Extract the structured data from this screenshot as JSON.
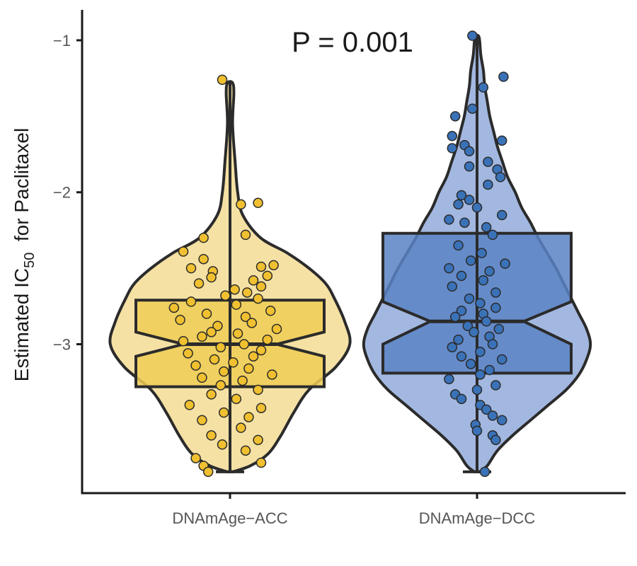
{
  "chart_data": {
    "type": "violin",
    "annotation": "P = 0.001",
    "ylabel": {
      "prefix": "Estimated IC",
      "subscript": "50",
      "suffix": "  for Paclitaxel"
    },
    "xlabel": "",
    "ylim": [
      -3.98,
      -0.8
    ],
    "yticks": [
      -1,
      -2,
      -3
    ],
    "ytick_labels": [
      "−1",
      "−2",
      "−3"
    ],
    "grid": false,
    "legend": "none",
    "series": [
      {
        "category": "DNAmAge−ACC",
        "fill_color": "#f5e1a4",
        "box_color": "#eecc55",
        "point_color": "#f0c030",
        "box": {
          "q1": -3.28,
          "median": -3.0,
          "q3": -2.71,
          "notch_low": -3.08,
          "notch_high": -2.92,
          "whisker_low": -3.84,
          "whisker_high": -1.28
        },
        "density": [
          [
            -3.84,
            0.02
          ],
          [
            -3.8,
            0.16
          ],
          [
            -3.72,
            0.3
          ],
          [
            -3.6,
            0.4
          ],
          [
            -3.45,
            0.5
          ],
          [
            -3.3,
            0.62
          ],
          [
            -3.15,
            0.83
          ],
          [
            -3.0,
            0.94
          ],
          [
            -2.85,
            0.9
          ],
          [
            -2.7,
            0.82
          ],
          [
            -2.6,
            0.75
          ],
          [
            -2.5,
            0.62
          ],
          [
            -2.4,
            0.45
          ],
          [
            -2.3,
            0.24
          ],
          [
            -2.15,
            0.1
          ],
          [
            -2.0,
            0.06
          ],
          [
            -1.8,
            0.04
          ],
          [
            -1.55,
            0.02
          ],
          [
            -1.35,
            0.03
          ],
          [
            -1.28,
            0.02
          ]
        ],
        "points": [
          [
            -1.26,
            -0.05
          ],
          [
            -2.07,
            0.18
          ],
          [
            -2.08,
            0.07
          ],
          [
            -2.28,
            0.1
          ],
          [
            -2.3,
            -0.17
          ],
          [
            -2.39,
            -0.3
          ],
          [
            -2.44,
            -0.17
          ],
          [
            -2.48,
            0.28
          ],
          [
            -2.49,
            0.2
          ],
          [
            -2.5,
            -0.25
          ],
          [
            -2.52,
            -0.11
          ],
          [
            -2.55,
            0.24
          ],
          [
            -2.56,
            -0.12
          ],
          [
            -2.58,
            0.15
          ],
          [
            -2.6,
            -0.2
          ],
          [
            -2.62,
            0.2
          ],
          [
            -2.64,
            0.03
          ],
          [
            -2.66,
            0.11
          ],
          [
            -2.68,
            -0.03
          ],
          [
            -2.7,
            0.18
          ],
          [
            -2.72,
            -0.25
          ],
          [
            -2.74,
            0.04
          ],
          [
            -2.76,
            -0.36
          ],
          [
            -2.78,
            0.26
          ],
          [
            -2.8,
            -0.15
          ],
          [
            -2.82,
            0.1
          ],
          [
            -2.84,
            -0.32
          ],
          [
            -2.86,
            0.14
          ],
          [
            -2.88,
            -0.08
          ],
          [
            -2.9,
            0.3
          ],
          [
            -2.92,
            -0.12
          ],
          [
            -2.93,
            0.05
          ],
          [
            -2.95,
            -0.18
          ],
          [
            -2.97,
            0.24
          ],
          [
            -2.98,
            -0.3
          ],
          [
            -3.0,
            0.09
          ],
          [
            -3.02,
            -0.06
          ],
          [
            -3.04,
            0.2
          ],
          [
            -3.06,
            -0.27
          ],
          [
            -3.08,
            0.15
          ],
          [
            -3.1,
            -0.1
          ],
          [
            -3.12,
            0.02
          ],
          [
            -3.14,
            -0.22
          ],
          [
            -3.16,
            0.12
          ],
          [
            -3.18,
            -0.04
          ],
          [
            -3.2,
            0.27
          ],
          [
            -3.22,
            -0.18
          ],
          [
            -3.24,
            0.08
          ],
          [
            -3.27,
            -0.06
          ],
          [
            -3.3,
            0.18
          ],
          [
            -3.33,
            -0.12
          ],
          [
            -3.36,
            0.04
          ],
          [
            -3.4,
            -0.26
          ],
          [
            -3.42,
            0.2
          ],
          [
            -3.45,
            -0.04
          ],
          [
            -3.48,
            0.12
          ],
          [
            -3.5,
            -0.18
          ],
          [
            -3.55,
            0.07
          ],
          [
            -3.6,
            -0.12
          ],
          [
            -3.63,
            0.18
          ],
          [
            -3.66,
            -0.05
          ],
          [
            -3.7,
            0.1
          ],
          [
            -3.75,
            -0.22
          ],
          [
            -3.78,
            0.2
          ],
          [
            -3.8,
            -0.17
          ],
          [
            -3.84,
            -0.14
          ]
        ]
      },
      {
        "category": "DNAmAge−DCC",
        "fill_color": "#a3b8e0",
        "box_color": "#5b82c4",
        "point_color": "#3a72b8",
        "box": {
          "q1": -3.19,
          "median": -2.85,
          "q3": -2.27,
          "notch_low": -3.0,
          "notch_high": -2.72,
          "whisker_low": -3.84,
          "whisker_high": -0.97
        },
        "density": [
          [
            -3.84,
            0.02
          ],
          [
            -3.8,
            0.08
          ],
          [
            -3.7,
            0.16
          ],
          [
            -3.6,
            0.28
          ],
          [
            -3.5,
            0.42
          ],
          [
            -3.4,
            0.56
          ],
          [
            -3.3,
            0.7
          ],
          [
            -3.2,
            0.8
          ],
          [
            -3.1,
            0.86
          ],
          [
            -3.0,
            0.89
          ],
          [
            -2.9,
            0.86
          ],
          [
            -2.8,
            0.8
          ],
          [
            -2.7,
            0.74
          ],
          [
            -2.6,
            0.68
          ],
          [
            -2.5,
            0.62
          ],
          [
            -2.4,
            0.55
          ],
          [
            -2.3,
            0.48
          ],
          [
            -2.2,
            0.42
          ],
          [
            -2.1,
            0.35
          ],
          [
            -2.0,
            0.3
          ],
          [
            -1.9,
            0.24
          ],
          [
            -1.8,
            0.2
          ],
          [
            -1.7,
            0.16
          ],
          [
            -1.6,
            0.13
          ],
          [
            -1.5,
            0.1
          ],
          [
            -1.4,
            0.08
          ],
          [
            -1.3,
            0.06
          ],
          [
            -1.2,
            0.05
          ],
          [
            -1.1,
            0.03
          ],
          [
            -1.0,
            0.02
          ],
          [
            -0.97,
            0.01
          ]
        ],
        "points": [
          [
            -0.97,
            -0.03
          ],
          [
            -1.24,
            0.17
          ],
          [
            -1.31,
            0.04
          ],
          [
            -1.45,
            -0.03
          ],
          [
            -1.5,
            -0.14
          ],
          [
            -1.63,
            -0.16
          ],
          [
            -1.66,
            0.16
          ],
          [
            -1.69,
            -0.08
          ],
          [
            -1.71,
            -0.16
          ],
          [
            -1.73,
            -0.05
          ],
          [
            -1.8,
            0.07
          ],
          [
            -1.83,
            -0.05
          ],
          [
            -1.85,
            0.13
          ],
          [
            -1.9,
            0.15
          ],
          [
            -1.95,
            0.07
          ],
          [
            -2.02,
            -0.1
          ],
          [
            -2.05,
            -0.05
          ],
          [
            -2.08,
            -0.12
          ],
          [
            -2.1,
            0.0
          ],
          [
            -2.15,
            0.16
          ],
          [
            -2.18,
            -0.18
          ],
          [
            -2.2,
            -0.08
          ],
          [
            -2.23,
            0.06
          ],
          [
            -2.28,
            0.1
          ],
          [
            -2.35,
            -0.12
          ],
          [
            -2.4,
            0.03
          ],
          [
            -2.45,
            -0.04
          ],
          [
            -2.47,
            0.18
          ],
          [
            -2.5,
            -0.18
          ],
          [
            -2.52,
            0.08
          ],
          [
            -2.55,
            -0.1
          ],
          [
            -2.58,
            0.04
          ],
          [
            -2.62,
            -0.16
          ],
          [
            -2.66,
            0.12
          ],
          [
            -2.7,
            -0.05
          ],
          [
            -2.73,
            0.02
          ],
          [
            -2.76,
            0.12
          ],
          [
            -2.78,
            -0.1
          ],
          [
            -2.8,
            0.04
          ],
          [
            -2.82,
            -0.14
          ],
          [
            -2.85,
            0.06
          ],
          [
            -2.88,
            -0.06
          ],
          [
            -2.9,
            0.14
          ],
          [
            -2.92,
            -0.02
          ],
          [
            -2.95,
            0.08
          ],
          [
            -2.97,
            -0.12
          ],
          [
            -3.0,
            0.1
          ],
          [
            -3.02,
            -0.16
          ],
          [
            -3.05,
            0.02
          ],
          [
            -3.08,
            -0.1
          ],
          [
            -3.1,
            0.16
          ],
          [
            -3.13,
            -0.04
          ],
          [
            -3.17,
            0.08
          ],
          [
            -3.2,
            0.02
          ],
          [
            -3.23,
            -0.18
          ],
          [
            -3.27,
            0.12
          ],
          [
            -3.3,
            0.0
          ],
          [
            -3.33,
            -0.14
          ],
          [
            -3.36,
            -0.1
          ],
          [
            -3.4,
            0.02
          ],
          [
            -3.43,
            0.06
          ],
          [
            -3.47,
            0.1
          ],
          [
            -3.5,
            0.16
          ],
          [
            -3.53,
            -0.01
          ],
          [
            -3.57,
            0.0
          ],
          [
            -3.6,
            0.1
          ],
          [
            -3.63,
            0.12
          ],
          [
            -3.84,
            0.05
          ]
        ]
      }
    ]
  }
}
